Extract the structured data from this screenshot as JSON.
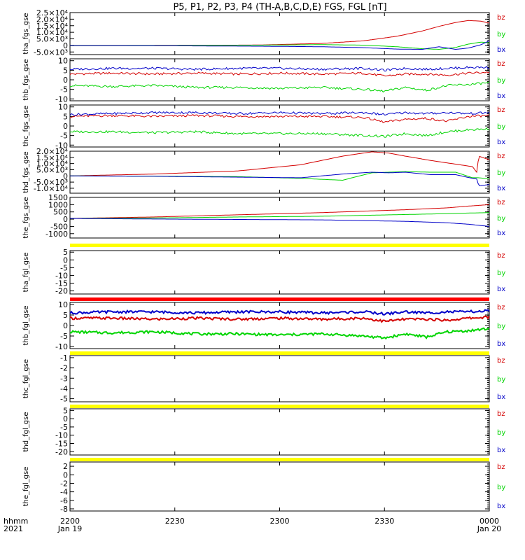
{
  "title": "P5, P1, P2, P3, P4 (TH-A,B,C,D,E) FGS, FGL [nT]",
  "colors": {
    "bz": "#d40000",
    "by": "#00d400",
    "bx": "#0000c8",
    "flag_yellow": "#ffff00",
    "flag_red": "#ff0000"
  },
  "x_axis": {
    "ticks": [
      "2200",
      "2230",
      "2300",
      "2330",
      "0000"
    ],
    "subticks": [
      "Jan 19",
      "",
      "",
      "",
      "Jan 20"
    ],
    "row_labels": [
      "hhmm",
      "2021"
    ]
  },
  "chart_data": [
    {
      "type": "line",
      "ylabel": "tha_fgs_gse",
      "ylim": [
        -7000,
        25000
      ],
      "yticks": [
        "2.5×10⁴",
        "2.0×10⁴",
        "1.5×10⁴",
        "1.0×10⁴",
        "5.0×10³",
        "0",
        "-5.0×10³"
      ],
      "ytick_values": [
        25000,
        20000,
        15000,
        10000,
        5000,
        0,
        -5000
      ],
      "x": [
        0,
        0.25,
        0.45,
        0.6,
        0.7,
        0.78,
        0.84,
        0.88,
        0.92,
        0.95,
        0.98,
        1.0
      ],
      "series": [
        {
          "name": "bz",
          "values": [
            -200,
            0,
            300,
            1500,
            3500,
            7000,
            11000,
            14500,
            17500,
            19000,
            18500,
            17000
          ]
        },
        {
          "name": "by",
          "values": [
            -200,
            -100,
            200,
            600,
            200,
            -1000,
            -2500,
            -3000,
            -1500,
            1000,
            2500,
            2000
          ]
        },
        {
          "name": "bx",
          "values": [
            -200,
            -300,
            -600,
            -1000,
            -1700,
            -2800,
            -3000,
            -1000,
            -3000,
            -2000,
            500,
            3500
          ]
        }
      ]
    },
    {
      "type": "line",
      "ylabel": "thb_fgs_gse",
      "ylim": [
        -11,
        11
      ],
      "yticks": [
        "10",
        "5",
        "0",
        "-5",
        "-10"
      ],
      "ytick_values": [
        10,
        5,
        0,
        -5,
        -10
      ],
      "x": [
        0,
        0.1,
        0.2,
        0.3,
        0.4,
        0.5,
        0.6,
        0.7,
        0.75,
        0.8,
        0.85,
        0.9,
        0.95,
        1.0
      ],
      "series": [
        {
          "name": "bz",
          "values": [
            3,
            3.5,
            3,
            3.5,
            3,
            3.5,
            3,
            3.5,
            2,
            3,
            3,
            2.5,
            3.5,
            4
          ]
        },
        {
          "name": "by",
          "values": [
            -3,
            -3.5,
            -3,
            -4,
            -4,
            -4.5,
            -4,
            -5,
            -6,
            -4,
            -5.5,
            -3,
            -2.5,
            -1.5
          ]
        },
        {
          "name": "bx",
          "values": [
            5.5,
            6,
            6,
            5.5,
            6,
            6,
            5.5,
            6,
            5,
            6,
            5.5,
            6,
            6.5,
            6.5
          ]
        }
      ]
    },
    {
      "type": "line",
      "ylabel": "thc_fgs_gse",
      "ylim": [
        -11,
        11
      ],
      "yticks": [
        "10",
        "5",
        "0",
        "-5",
        "-10"
      ],
      "ytick_values": [
        10,
        5,
        0,
        -5,
        -10
      ],
      "x": [
        0,
        0.1,
        0.2,
        0.3,
        0.4,
        0.5,
        0.6,
        0.7,
        0.75,
        0.8,
        0.85,
        0.9,
        0.95,
        1.0
      ],
      "series": [
        {
          "name": "bz",
          "values": [
            5,
            5.5,
            5,
            5.5,
            5,
            5,
            5,
            4.5,
            2,
            3.5,
            4,
            2.5,
            5,
            5.5
          ]
        },
        {
          "name": "by",
          "values": [
            -3,
            -3,
            -3.5,
            -3,
            -4,
            -4,
            -4,
            -5,
            -5.5,
            -4,
            -5,
            -3,
            -2,
            -1.5
          ]
        },
        {
          "name": "bx",
          "values": [
            6,
            6.5,
            7,
            7,
            6.5,
            7,
            6.5,
            7,
            6,
            7,
            6.5,
            7,
            6.5,
            7
          ]
        }
      ]
    },
    {
      "type": "line",
      "ylabel": "thd_fgs_gse",
      "ylim": [
        -14000,
        20000
      ],
      "yticks": [
        "2.0×10⁴",
        "1.5×10⁴",
        "1.0×10⁴",
        "5.0×10³",
        "0",
        "-5.0×10³",
        "-1.0×10⁴"
      ],
      "ytick_values": [
        20000,
        15000,
        10000,
        5000,
        0,
        -5000,
        -10000
      ],
      "x": [
        0,
        0.2,
        0.4,
        0.55,
        0.65,
        0.72,
        0.76,
        0.8,
        0.86,
        0.92,
        0.96,
        0.97,
        0.975,
        1.0
      ],
      "series": [
        {
          "name": "bz",
          "values": [
            0,
            1500,
            4000,
            9000,
            16000,
            19500,
            18500,
            16000,
            12500,
            9500,
            7500,
            3000,
            16000,
            13000
          ]
        },
        {
          "name": "by",
          "values": [
            0,
            -200,
            -600,
            -2000,
            -3500,
            2500,
            3000,
            3500,
            3000,
            3000,
            -1500,
            -1500,
            -1500,
            -2500
          ]
        },
        {
          "name": "bx",
          "values": [
            0,
            -300,
            -1000,
            -1500,
            1500,
            3000,
            2500,
            3000,
            1000,
            1000,
            -2000,
            -2500,
            -8000,
            -7000
          ]
        }
      ]
    },
    {
      "type": "line",
      "ylabel": "the_fgs_gse",
      "ylim": [
        -1300,
        1500
      ],
      "yticks": [
        "1500",
        "1000",
        "500",
        "0",
        "-500",
        "-1000"
      ],
      "ytick_values": [
        1500,
        1000,
        500,
        0,
        -500,
        -1000
      ],
      "x": [
        0,
        0.2,
        0.4,
        0.6,
        0.8,
        0.9,
        0.95,
        1.0
      ],
      "series": [
        {
          "name": "bz",
          "values": [
            50,
            150,
            300,
            450,
            650,
            780,
            900,
            1000
          ]
        },
        {
          "name": "by",
          "values": [
            50,
            80,
            150,
            200,
            320,
            380,
            420,
            450
          ]
        },
        {
          "name": "bx",
          "values": [
            50,
            10,
            -20,
            -50,
            -150,
            -250,
            -350,
            -500
          ]
        }
      ]
    },
    {
      "type": "line",
      "ylabel": "tha_fgl_gse",
      "ylim": [
        -22,
        6
      ],
      "yticks": [
        "5",
        "0",
        "-5",
        "-10",
        "-15",
        "-20"
      ],
      "ytick_values": [
        5,
        0,
        -5,
        -10,
        -15,
        -20
      ],
      "x": [],
      "series": []
    },
    {
      "type": "line",
      "ylabel": "thb_fgl_gse",
      "ylim": [
        -11,
        11
      ],
      "yticks": [
        "10",
        "5",
        "0",
        "-5",
        "-10"
      ],
      "ytick_values": [
        10,
        5,
        0,
        -5,
        -10
      ],
      "x": [
        0,
        0.1,
        0.2,
        0.3,
        0.4,
        0.5,
        0.6,
        0.7,
        0.75,
        0.8,
        0.85,
        0.9,
        0.95,
        1.0
      ],
      "series": [
        {
          "name": "bz",
          "values": [
            3.5,
            3.5,
            3,
            3.5,
            3,
            3.5,
            3,
            3.5,
            2,
            3,
            3,
            2.5,
            3.5,
            4
          ]
        },
        {
          "name": "by",
          "values": [
            -3,
            -3.5,
            -3,
            -4,
            -4,
            -4.5,
            -4,
            -5,
            -6,
            -4,
            -5.5,
            -3,
            -2.5,
            -1.5
          ]
        },
        {
          "name": "bx",
          "values": [
            6,
            6.5,
            6.5,
            6,
            6.5,
            6.5,
            6,
            6.5,
            5.5,
            6.5,
            6,
            6.5,
            6.5,
            7
          ]
        }
      ]
    },
    {
      "type": "line",
      "ylabel": "thc_fgl_gse",
      "ylim": [
        -5.3,
        -0.8
      ],
      "yticks": [
        "-1",
        "-2",
        "-3",
        "-4",
        "-5"
      ],
      "ytick_values": [
        -1,
        -2,
        -3,
        -4,
        -5
      ],
      "x": [],
      "series": []
    },
    {
      "type": "line",
      "ylabel": "thd_fgl_gse",
      "ylim": [
        -22,
        6
      ],
      "yticks": [
        "5",
        "0",
        "-5",
        "-10",
        "-15",
        "-20"
      ],
      "ytick_values": [
        5,
        0,
        -5,
        -10,
        -15,
        -20
      ],
      "x": [],
      "series": []
    },
    {
      "type": "line",
      "ylabel": "the_fgl_gse",
      "ylim": [
        -8.5,
        3
      ],
      "yticks": [
        "2",
        "0",
        "-2",
        "-4",
        "-6",
        "-8"
      ],
      "ytick_values": [
        2,
        0,
        -2,
        -4,
        -6,
        -8
      ],
      "x": [],
      "series": []
    }
  ],
  "flag_bars": [
    "yellow",
    "yellow",
    "red",
    "yellow",
    "yellow",
    "yellow"
  ]
}
